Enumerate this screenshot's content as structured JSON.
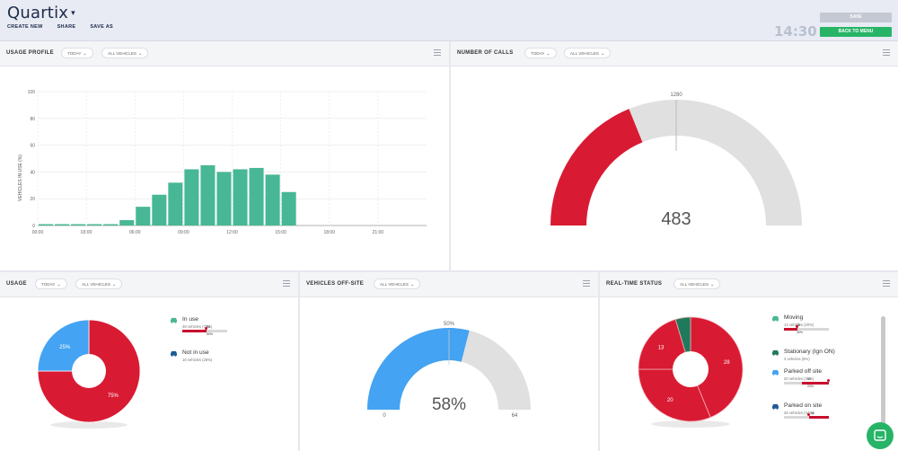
{
  "app": {
    "brand": "Quartix",
    "menu": [
      "CREATE NEW",
      "SHARE",
      "SAVE AS"
    ],
    "clock": "14:30",
    "save_label": "SAVE",
    "back_label": "BACK TO MENU"
  },
  "colors": {
    "teal": "#48b796",
    "red": "#d91a33",
    "blue": "#44a3f2",
    "gray": "#e0e0e0",
    "green": "#27b467",
    "dark_green": "#1f7a5c"
  },
  "usage_profile": {
    "title": "USAGE PROFILE",
    "filter_period": "TODAY",
    "filter_vehicles": "ALL VEHICLES"
  },
  "number_of_calls": {
    "title": "NUMBER OF CALLS",
    "filter_period": "TODAY",
    "filter_vehicles": "ALL VEHICLES",
    "value": 483,
    "value_label": "483",
    "max_label": "1280"
  },
  "usage": {
    "title": "USAGE",
    "filter_period": "TODAY",
    "filter_vehicles": "ALL VEHICLES",
    "legend": [
      {
        "label": "In use",
        "sub": "48 vehicles (75%)",
        "icon": "car-icon",
        "bar_fill": 0.55,
        "bar_marker_label": "50%",
        "bar_top_label": "50"
      },
      {
        "label": "Not in use",
        "sub": "16 vehicles (25%)",
        "icon": "car-icon"
      }
    ]
  },
  "vehicles_off_site": {
    "title": "VEHICLES OFF-SITE",
    "filter_vehicles": "ALL VEHICLES",
    "center_label": "58%",
    "value_fraction": 0.58,
    "top_label": "50%",
    "min_label": "0",
    "max_label": "64"
  },
  "realtime_status": {
    "title": "REAL-TIME STATUS",
    "filter_vehicles": "ALL VEHICLES",
    "legend": [
      {
        "label": "Moving",
        "sub": "13 vehicles (20%)",
        "icon": "car-icon",
        "bar_fill": 0.3,
        "bar_label": "30%",
        "bar_top_label": "50"
      },
      {
        "label": "Stationary (Ign ON)",
        "sub": "3 vehicles (5%)",
        "icon": "car-icon"
      },
      {
        "label": "Parked off site",
        "sub": "20 vehicles (31%)",
        "icon": "car-icon",
        "bar_fill": 0.6,
        "bar_label": "20%",
        "bar_top_label": "50"
      },
      {
        "label": "Parked on site",
        "sub": "28 vehicles (44%)",
        "icon": "car-icon",
        "bar_fill": 0.5,
        "bar_label": "50"
      }
    ]
  },
  "chart_data": [
    {
      "type": "bar",
      "ylabel": "VEHICLES IN USE (%)",
      "ylim": [
        0,
        100
      ],
      "yticks": [
        0,
        20,
        40,
        60,
        80,
        100
      ],
      "xtick_labels": [
        "00:00",
        "03:00",
        "06:00",
        "09:00",
        "12:00",
        "15:00",
        "18:00",
        "21:00"
      ],
      "categories": [
        "00",
        "01",
        "02",
        "03",
        "04",
        "05",
        "06",
        "07",
        "08",
        "09",
        "10",
        "11",
        "12",
        "13",
        "14",
        "15",
        "16",
        "17",
        "18",
        "19",
        "20",
        "21",
        "22",
        "23"
      ],
      "values": [
        1,
        1,
        1,
        1,
        1,
        4,
        14,
        23,
        32,
        42,
        45,
        40,
        42,
        43,
        38,
        25,
        0,
        0,
        0,
        0,
        0,
        0,
        0,
        0
      ],
      "grid": true,
      "color": "#48b796"
    },
    {
      "type": "pie",
      "slices": [
        {
          "label": "75%",
          "value": 75,
          "color": "#d91a33"
        },
        {
          "label": "25%",
          "value": 25,
          "color": "#44a3f2"
        }
      ]
    },
    {
      "type": "pie",
      "slices": [
        {
          "label": "28",
          "value": 28,
          "color": "#d91a33"
        },
        {
          "label": "20",
          "value": 20,
          "color": "#d91a33"
        },
        {
          "label": "13",
          "value": 13,
          "color": "#d91a33"
        },
        {
          "label": "",
          "value": 3,
          "color": "#1f7a5c"
        }
      ]
    }
  ]
}
